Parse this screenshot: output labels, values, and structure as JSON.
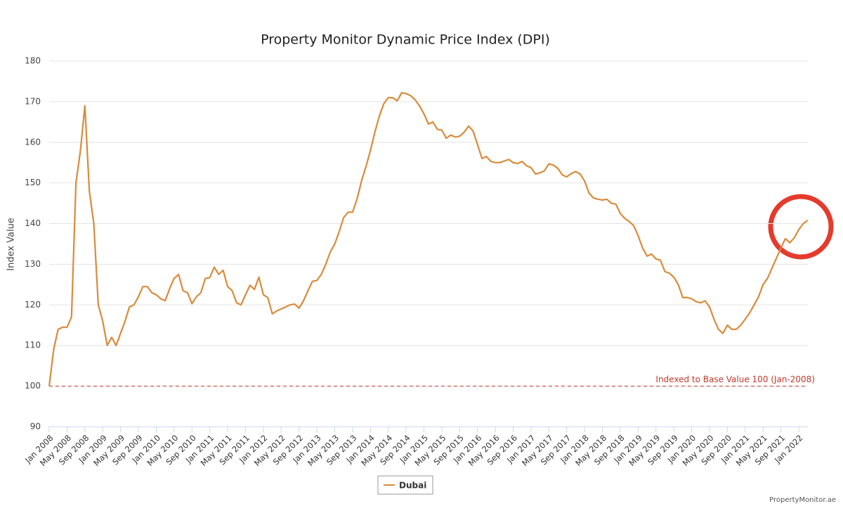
{
  "chart_data": {
    "type": "line",
    "title": "Property Monitor Dynamic Price Index (DPI)",
    "y_label": "Index Value",
    "annotation": "Indexed to Base Value 100 (Jan-2008)",
    "baseline": 100,
    "credit": "PropertyMonitor.ae",
    "categories": [
      "Jan 2008",
      null,
      null,
      null,
      "May 2008",
      null,
      null,
      null,
      "Sep 2008",
      null,
      null,
      null,
      "Jan 2009",
      null,
      null,
      null,
      "May 2009",
      null,
      null,
      null,
      "Sep 2009",
      null,
      null,
      null,
      "Jan 2010",
      null,
      null,
      null,
      "May 2010",
      null,
      null,
      null,
      "Sep 2010",
      null,
      null,
      null,
      "Jan 2011",
      null,
      null,
      null,
      "May 2011",
      null,
      null,
      null,
      "Sep 2011",
      null,
      null,
      null,
      "Jan 2012",
      null,
      null,
      null,
      "May 2012",
      null,
      null,
      null,
      "Sep 2012",
      null,
      null,
      null,
      "Jan 2013",
      null,
      null,
      null,
      "May 2013",
      null,
      null,
      null,
      "Sep 2013",
      null,
      null,
      null,
      "Jan 2014",
      null,
      null,
      null,
      "May 2014",
      null,
      null,
      null,
      "Sep 2014",
      null,
      null,
      null,
      "Jan 2015",
      null,
      null,
      null,
      "May 2015",
      null,
      null,
      null,
      "Sep 2015",
      null,
      null,
      null,
      "Jan 2016",
      null,
      null,
      null,
      "May 2016",
      null,
      null,
      null,
      "Sep 2016",
      null,
      null,
      null,
      "Jan 2017",
      null,
      null,
      null,
      "May 2017",
      null,
      null,
      null,
      "Sep 2017",
      null,
      null,
      null,
      "Jan 2018",
      null,
      null,
      null,
      "May 2018",
      null,
      null,
      null,
      "Sep 2018",
      null,
      null,
      null,
      "Jan 2019",
      null,
      null,
      null,
      "May 2019",
      null,
      null,
      null,
      "Sep 2019",
      null,
      null,
      null,
      "Jan 2020",
      null,
      null,
      null,
      "May 2020",
      null,
      null,
      null,
      "Sep 2020",
      null,
      null,
      null,
      "Jan 2021",
      null,
      null,
      null,
      "May 2021",
      null,
      null,
      null,
      "Sep 2021",
      null,
      null,
      null,
      "Jan 2022",
      null,
      null
    ],
    "series": [
      {
        "name": "Dubai",
        "color": "#d98b3a",
        "values": [
          100,
          109,
          114,
          114.5,
          114.5,
          117,
          150,
          158,
          169,
          148,
          140,
          120,
          116,
          110,
          112,
          110,
          113,
          116,
          119.5,
          120,
          122,
          124.5,
          124.5,
          123,
          122.5,
          121.5,
          121,
          124,
          126.5,
          127.5,
          123.5,
          123,
          120.3,
          122,
          123,
          126.5,
          126.7,
          129.3,
          127.5,
          128.5,
          124.5,
          123.5,
          120.5,
          120,
          122.5,
          124.8,
          123.8,
          126.8,
          122.5,
          121.8,
          117.8,
          118.5,
          119,
          119.5,
          120,
          120.2,
          119.2,
          121,
          123.5,
          125.8,
          126,
          127.5,
          130,
          133,
          135,
          138,
          141.5,
          142.8,
          142.8,
          146,
          150.5,
          154,
          158,
          162.5,
          166.5,
          169.5,
          171,
          171,
          170.2,
          172.2,
          172,
          171.5,
          170.5,
          169,
          167,
          164.5,
          165,
          163.2,
          163,
          161,
          161.8,
          161.3,
          161.5,
          162.5,
          164,
          162.8,
          159.5,
          156,
          156.5,
          155.3,
          155,
          155,
          155.4,
          155.8,
          155,
          154.8,
          155.3,
          154.2,
          153.8,
          152.2,
          152.5,
          153,
          154.7,
          154.4,
          153.6,
          152,
          151.5,
          152.3,
          152.8,
          152.2,
          150.5,
          147.5,
          146.3,
          146,
          145.8,
          146,
          145,
          144.8,
          142.5,
          141.3,
          140.5,
          139.5,
          137,
          134,
          132,
          132.5,
          131.3,
          131,
          128.2,
          127.8,
          126.8,
          125,
          121.8,
          121.8,
          121.5,
          120.8,
          120.5,
          121,
          119.5,
          116.5,
          114,
          113,
          115,
          114,
          114,
          115,
          116.5,
          118,
          120,
          122,
          125,
          126.5,
          129,
          131.5,
          134,
          136.3,
          135.3,
          136.5,
          138.5,
          140,
          140.8
        ]
      }
    ],
    "ylim": [
      90,
      180
    ],
    "yticks": [
      90,
      100,
      110,
      120,
      130,
      140,
      150,
      160,
      170,
      180
    ],
    "grid": true
  }
}
